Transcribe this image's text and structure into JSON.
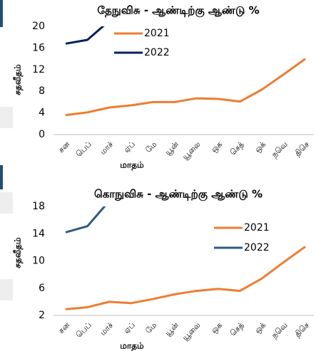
{
  "chart_data": [
    {
      "type": "line",
      "title": "தேநுவிசு - ஆண்டிற்கு ஆண்டு %",
      "y_label": "சதவீதம்",
      "x_label": "மாதம்",
      "categories": [
        "சன",
        "பெப்",
        "மாச்",
        "ஏப்",
        "மே",
        "யூன்",
        "யூலை",
        "ஒக",
        "செத்",
        "ஒக்",
        "நவெ",
        "திசெ"
      ],
      "series": [
        {
          "name": "2021",
          "color": "#ED7D31",
          "values": [
            3.6,
            4.1,
            5.0,
            5.4,
            6.0,
            6.0,
            6.7,
            6.6,
            6.1,
            8.3,
            11.1,
            14.0
          ]
        },
        {
          "name": "2022",
          "color": "#002060",
          "values": [
            16.8,
            17.5,
            21,
            null,
            null,
            null,
            null,
            null,
            null,
            null,
            null,
            null
          ]
        }
      ],
      "ylim": [
        0,
        20
      ],
      "yticks": [
        0,
        4,
        8,
        12,
        16,
        20
      ]
    },
    {
      "type": "line",
      "title": "கொநுவிசு - ஆண்டிற்கு ஆண்டு %",
      "y_label": "சதவீதம்",
      "x_label": "மாதம்",
      "categories": [
        "சன",
        "பெப்",
        "மாச்",
        "ஏப்",
        "மே",
        "யூன்",
        "யூலை",
        "ஒக",
        "செத்",
        "ஒக்",
        "நவெ",
        "திசெ"
      ],
      "series": [
        {
          "name": "2021",
          "color": "#ED7D31",
          "values": [
            2.9,
            3.2,
            4.0,
            3.8,
            4.4,
            5.1,
            5.6,
            5.9,
            5.6,
            7.4,
            9.8,
            12.1
          ]
        },
        {
          "name": "2022",
          "color": "#2E5A88",
          "values": [
            14.2,
            15.1,
            18.8,
            null,
            null,
            null,
            null,
            null,
            null,
            null,
            null,
            null
          ]
        }
      ],
      "ylim": [
        2,
        18
      ],
      "yticks": [
        2,
        6,
        10,
        14,
        18
      ]
    }
  ]
}
